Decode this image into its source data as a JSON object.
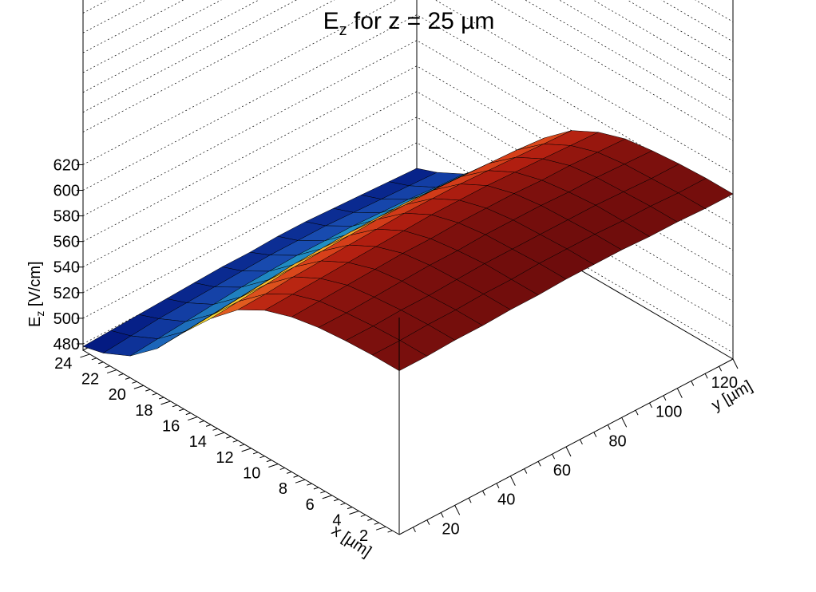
{
  "chart_data": {
    "type": "surface",
    "title": "E",
    "title_subscript": "z",
    "title_rest": " for z = 25 µm",
    "xlabel": "x [µm]",
    "ylabel": "y [µm]",
    "zlabel_main": "E",
    "zlabel_sub": "z",
    "zlabel_rest": " [V/cm]",
    "xlim": [
      1,
      24.5
    ],
    "ylim": [
      0,
      120
    ],
    "zlim": [
      475,
      630
    ],
    "x_ticks": [
      "2",
      "4",
      "6",
      "8",
      "10",
      "12",
      "14",
      "16",
      "18",
      "20",
      "22",
      "24"
    ],
    "y_ticks": [
      "20",
      "40",
      "60",
      "80",
      "100",
      "120"
    ],
    "z_ticks": [
      "480",
      "500",
      "520",
      "540",
      "560",
      "580",
      "600",
      "620"
    ],
    "x_tick_values": [
      2,
      4,
      6,
      8,
      10,
      12,
      14,
      16,
      18,
      20,
      22,
      24
    ],
    "y_tick_values": [
      20,
      40,
      60,
      80,
      100,
      120
    ],
    "z_tick_values": [
      480,
      500,
      520,
      540,
      560,
      580,
      600,
      620
    ],
    "grid": true,
    "colormap": "rainbow",
    "x_samples": [
      1,
      3,
      5,
      7,
      9,
      11,
      13,
      15,
      17,
      19,
      21,
      23,
      24.5
    ],
    "y_samples": [
      0,
      10,
      20,
      30,
      40,
      50,
      60,
      70,
      80,
      90,
      100,
      110,
      120
    ],
    "z_values": [
      [
        603,
        603,
        602,
        600,
        596,
        589,
        577,
        558,
        535,
        510,
        492,
        482,
        478
      ],
      [
        603,
        603,
        602,
        600,
        597,
        590,
        578,
        560,
        537,
        512,
        494,
        484,
        479
      ],
      [
        604,
        604,
        603,
        601,
        598,
        591,
        580,
        562,
        539,
        514,
        496,
        486,
        480
      ],
      [
        604,
        604,
        603,
        602,
        599,
        592,
        581,
        564,
        541,
        516,
        498,
        487,
        481
      ],
      [
        605,
        605,
        604,
        603,
        600,
        593,
        582,
        565,
        543,
        518,
        500,
        488,
        482
      ],
      [
        605,
        605,
        605,
        603,
        600,
        594,
        583,
        566,
        544,
        519,
        501,
        489,
        483
      ],
      [
        606,
        606,
        605,
        604,
        601,
        595,
        584,
        567,
        545,
        520,
        502,
        490,
        483
      ],
      [
        606,
        606,
        605,
        604,
        601,
        595,
        584,
        567,
        545,
        520,
        502,
        490,
        484
      ],
      [
        606,
        606,
        605,
        604,
        601,
        595,
        584,
        567,
        545,
        520,
        502,
        490,
        484
      ],
      [
        605,
        605,
        605,
        603,
        600,
        594,
        583,
        566,
        544,
        519,
        501,
        489,
        483
      ],
      [
        605,
        605,
        604,
        603,
        600,
        593,
        582,
        565,
        543,
        518,
        500,
        488,
        482
      ],
      [
        604,
        604,
        603,
        602,
        599,
        592,
        581,
        564,
        541,
        516,
        498,
        487,
        481
      ],
      [
        604,
        604,
        603,
        601,
        598,
        591,
        580,
        562,
        540,
        515,
        497,
        486,
        480
      ]
    ]
  }
}
